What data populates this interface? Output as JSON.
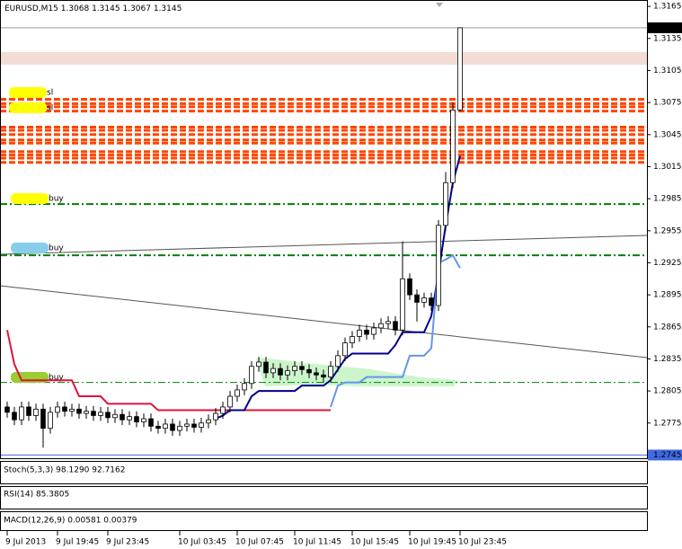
{
  "chart_data": {
    "type": "candlestick",
    "title": "EURUSD,M15",
    "open": [
      1.279,
      1.2785,
      1.2778,
      1.279,
      1.2782,
      1.2788,
      1.277,
      1.2785,
      1.279,
      1.2786,
      1.2788,
      1.2784,
      1.2786,
      1.2782,
      1.2785,
      1.278,
      1.2783,
      1.2778,
      1.2781,
      1.2776,
      1.2779,
      1.2772,
      1.277,
      1.2774,
      1.2768,
      1.2772,
      1.2774,
      1.2771,
      1.2775,
      1.2778,
      1.2784,
      1.279,
      1.28,
      1.2806,
      1.2812,
      1.2828,
      1.2832,
      1.2822,
      1.2826,
      1.282,
      1.2824,
      1.2828,
      1.2825,
      1.2822,
      1.282,
      1.2818,
      1.2828,
      1.2838,
      1.285,
      1.2856,
      1.2862,
      1.2858,
      1.2864,
      1.2868,
      1.287,
      1.2862,
      1.291,
      1.2895,
      1.2888,
      1.2892,
      1.2885,
      1.296,
      1.3,
      1.3068
    ],
    "high": [
      1.2795,
      1.279,
      1.2795,
      1.2795,
      1.2793,
      1.2793,
      1.279,
      1.2795,
      1.2795,
      1.2793,
      1.2793,
      1.2791,
      1.2791,
      1.279,
      1.279,
      1.2788,
      1.2788,
      1.2786,
      1.2786,
      1.2784,
      1.2784,
      1.2777,
      1.2779,
      1.2779,
      1.2777,
      1.2779,
      1.2779,
      1.278,
      1.2783,
      1.2789,
      1.2795,
      1.2805,
      1.2811,
      1.2817,
      1.2833,
      1.2837,
      1.2837,
      1.2831,
      1.2831,
      1.2829,
      1.2833,
      1.2833,
      1.283,
      1.2827,
      1.2825,
      1.2833,
      1.2843,
      1.2855,
      1.2861,
      1.2867,
      1.2867,
      1.2869,
      1.2873,
      1.2875,
      1.2875,
      1.2945,
      1.2915,
      1.29,
      1.2897,
      1.2897,
      1.2965,
      1.301,
      1.3075,
      1.3145
    ],
    "low": [
      1.278,
      1.2773,
      1.2773,
      1.2777,
      1.2777,
      1.2752,
      1.2765,
      1.278,
      1.2781,
      1.2781,
      1.2779,
      1.2779,
      1.2777,
      1.2777,
      1.2775,
      1.2775,
      1.2773,
      1.2773,
      1.2771,
      1.2771,
      1.2767,
      1.2765,
      1.2765,
      1.2763,
      1.2763,
      1.2767,
      1.2766,
      1.2766,
      1.277,
      1.2773,
      1.2779,
      1.2785,
      1.2795,
      1.2801,
      1.2807,
      1.2823,
      1.2817,
      1.2817,
      1.2815,
      1.2815,
      1.2819,
      1.282,
      1.2817,
      1.2815,
      1.2813,
      1.2813,
      1.2823,
      1.2833,
      1.2845,
      1.2851,
      1.2853,
      1.2853,
      1.2859,
      1.2863,
      1.2857,
      1.2857,
      1.289,
      1.287,
      1.2883,
      1.288,
      1.288,
      1.2955,
      1.2995,
      1.3067
    ],
    "close": [
      1.2785,
      1.2778,
      1.279,
      1.2782,
      1.2788,
      1.277,
      1.2785,
      1.279,
      1.2786,
      1.2788,
      1.2784,
      1.2786,
      1.2782,
      1.2785,
      1.278,
      1.2783,
      1.2778,
      1.2781,
      1.2776,
      1.2779,
      1.2772,
      1.277,
      1.2774,
      1.2768,
      1.2772,
      1.2774,
      1.2771,
      1.2775,
      1.2778,
      1.2784,
      1.279,
      1.28,
      1.2806,
      1.2812,
      1.2828,
      1.2832,
      1.2822,
      1.2826,
      1.282,
      1.2824,
      1.2828,
      1.2825,
      1.2822,
      1.282,
      1.2818,
      1.2828,
      1.2838,
      1.285,
      1.2856,
      1.2862,
      1.2858,
      1.2864,
      1.2868,
      1.287,
      1.2862,
      1.291,
      1.2895,
      1.2888,
      1.2892,
      1.2885,
      1.296,
      1.3,
      1.3068,
      1.3145
    ],
    "xlim": [
      0,
      64
    ],
    "xticks": [
      {
        "value": 0,
        "label": "9 Jul 2013"
      },
      {
        "value": 7,
        "label": "9 Jul 19:45"
      },
      {
        "value": 14,
        "label": "9 Jul 23:45"
      },
      {
        "value": 24,
        "label": "10 Jul 03:45"
      },
      {
        "value": 32,
        "label": "10 Jul 07:45"
      },
      {
        "value": 40,
        "label": "10 Jul 11:45"
      },
      {
        "value": 48,
        "label": "10 Jul 15:45"
      },
      {
        "value": 56,
        "label": "10 Jul 19:45"
      },
      {
        "value": 63,
        "label": "10 Jul 23:45"
      }
    ],
    "ylim": [
      1.2742,
      1.3171
    ],
    "yticks": [
      1.3165,
      1.3135,
      1.3105,
      1.3075,
      1.3045,
      1.3015,
      1.2985,
      1.2955,
      1.2925,
      1.2895,
      1.2865,
      1.2835,
      1.2805,
      1.2775
    ],
    "price_line": 1.3145,
    "grid": false,
    "bull_color": "#ffffff",
    "bear_color": "#000000",
    "overlays": [
      {
        "color": "#dc143c",
        "values": [
          1.2862,
          1.283,
          1.2815,
          1.2815,
          1.2815,
          1.2815,
          1.2815,
          1.2815,
          1.2815,
          1.2815,
          1.28,
          1.28,
          1.28,
          1.28,
          1.2793,
          1.2793,
          1.2793,
          1.2793,
          1.2793,
          1.2793,
          1.2793,
          1.2787,
          1.2787,
          1.2787,
          1.2787,
          1.2787,
          1.2787,
          1.2787,
          1.2787,
          1.2787,
          1.2787,
          1.2787,
          1.2787,
          1.2787,
          1.2787,
          1.2787,
          1.2787,
          1.2787,
          1.2787,
          1.2787,
          1.2787,
          1.2787,
          1.2787,
          1.2787,
          1.2787,
          1.2787,
          null,
          null,
          null,
          null,
          null,
          null,
          null,
          null,
          null,
          null,
          null,
          null,
          null,
          null,
          null,
          null,
          null,
          null
        ]
      },
      {
        "color": "#00008b",
        "values": [
          null,
          null,
          null,
          null,
          null,
          null,
          null,
          null,
          null,
          null,
          null,
          null,
          null,
          null,
          null,
          null,
          null,
          null,
          null,
          null,
          null,
          null,
          null,
          null,
          null,
          null,
          null,
          null,
          null,
          1.2779,
          1.2782,
          1.2787,
          1.2787,
          1.2787,
          1.28,
          1.2805,
          1.2805,
          1.2805,
          1.2805,
          1.2805,
          1.2805,
          1.281,
          1.281,
          1.281,
          1.281,
          1.2815,
          1.2825,
          1.2835,
          1.284,
          1.284,
          1.284,
          1.284,
          1.284,
          1.284,
          1.2848,
          1.286,
          1.286,
          1.286,
          1.286,
          1.2875,
          1.2915,
          1.296,
          1.3,
          1.3025
        ]
      },
      {
        "color": "#6495ed",
        "values": [
          null,
          null,
          null,
          null,
          null,
          null,
          null,
          null,
          null,
          null,
          null,
          null,
          null,
          null,
          null,
          null,
          null,
          null,
          null,
          null,
          null,
          null,
          null,
          null,
          null,
          null,
          null,
          null,
          null,
          null,
          null,
          null,
          null,
          null,
          null,
          null,
          null,
          null,
          null,
          null,
          null,
          null,
          null,
          null,
          null,
          1.279,
          1.281,
          1.2813,
          1.2813,
          1.2813,
          1.2818,
          1.2818,
          1.2818,
          1.2818,
          1.2818,
          1.2818,
          1.2838,
          1.2838,
          1.2838,
          1.2845,
          1.2925,
          1.2928,
          1.2932,
          1.292
        ]
      }
    ],
    "levels": {
      "orange": [
        1.3078,
        1.3074,
        1.3071,
        1.3067,
        1.3052,
        1.3049,
        1.3045,
        1.304,
        1.3037,
        1.3029,
        1.3026,
        1.3023,
        1.3019
      ],
      "green": [
        1.298,
        1.2932,
        1.2813
      ],
      "blue": [
        1.2745
      ],
      "orange_color": "#ff4500",
      "green_color": "#008000",
      "blue_color": "#4169e1"
    },
    "annotations": [
      {
        "text": "sl",
        "highlight": "#ffff00"
      },
      {
        "text": "sl",
        "highlight": "#ffff00"
      },
      {
        "text": "buy",
        "highlight": "#ffff00"
      },
      {
        "text": "buy",
        "highlight": "#87ceeb"
      },
      {
        "text": "buy",
        "highlight": "#9acd32"
      }
    ],
    "panes": [
      {
        "label": "Stoch(5,3,3) 98.1290 92.7162"
      },
      {
        "label": "RSI(14) 85.3805"
      },
      {
        "label": "MACD(12,26,9) 0.00581 0.00379"
      }
    ]
  }
}
